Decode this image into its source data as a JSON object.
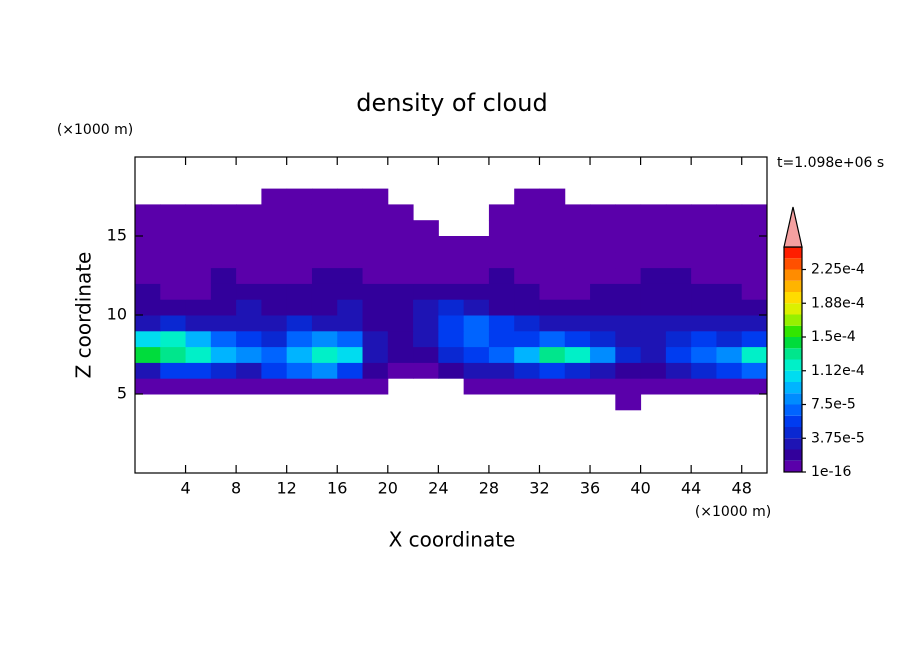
{
  "chart_data": {
    "type": "contour",
    "title": "density of cloud",
    "x_label": "X coordinate",
    "y_label": "Z coordinate",
    "x_unit": "(×1000 m)",
    "y_unit": "(×1000 m)",
    "time_label": "t=1.098e+06 s",
    "xlim": [
      0,
      50
    ],
    "ylim": [
      0,
      20
    ],
    "xticks": [
      4,
      8,
      12,
      16,
      20,
      24,
      28,
      32,
      36,
      40,
      44,
      48
    ],
    "yticks": [
      5,
      10,
      15
    ],
    "x": [
      1,
      3,
      5,
      7,
      9,
      11,
      13,
      15,
      17,
      19,
      21,
      23,
      25,
      27,
      29,
      31,
      33,
      35,
      37,
      39,
      41,
      43,
      45,
      47,
      49
    ],
    "y": [
      4.5,
      5.5,
      6.5,
      7.5,
      8.5,
      9.5,
      10.5,
      11.5,
      12.5,
      13.5,
      14.5,
      15.5,
      16.5,
      17.5
    ],
    "z": [
      [
        null,
        null,
        null,
        null,
        null,
        null,
        null,
        null,
        null,
        null,
        null,
        null,
        null,
        null,
        null,
        null,
        null,
        null,
        null,
        5e-06,
        null,
        null,
        null,
        null,
        null
      ],
      [
        5e-06,
        5e-06,
        5e-06,
        5e-06,
        5e-06,
        5e-06,
        5e-06,
        5e-06,
        5e-06,
        5e-06,
        null,
        null,
        null,
        5e-06,
        5e-06,
        5e-06,
        5e-06,
        5e-06,
        5e-06,
        5e-06,
        5e-06,
        5e-06,
        5e-06,
        5e-06,
        5e-06
      ],
      [
        3e-05,
        5e-05,
        5e-05,
        4e-05,
        3e-05,
        5e-05,
        6.5e-05,
        8e-05,
        5e-05,
        1.5e-05,
        5e-06,
        5e-06,
        1.5e-05,
        3e-05,
        3e-05,
        4e-05,
        5e-05,
        4e-05,
        3e-05,
        1.5e-05,
        1.5e-05,
        3e-05,
        4e-05,
        5e-05,
        6.5e-05
      ],
      [
        0.00014,
        0.00013,
        0.000115,
        9.5e-05,
        8e-05,
        6.5e-05,
        9.5e-05,
        0.000115,
        0.000105,
        3e-05,
        1.5e-05,
        1.5e-05,
        4e-05,
        5e-05,
        6.5e-05,
        9.5e-05,
        0.00013,
        0.000115,
        8e-05,
        4e-05,
        3e-05,
        5e-05,
        6.5e-05,
        8e-05,
        0.000115
      ],
      [
        0.000105,
        0.000115,
        9.5e-05,
        6.5e-05,
        5e-05,
        4e-05,
        6.5e-05,
        8e-05,
        6.5e-05,
        3e-05,
        1.5e-05,
        3e-05,
        5e-05,
        6.5e-05,
        5e-05,
        5e-05,
        6.5e-05,
        5e-05,
        4e-05,
        3e-05,
        3e-05,
        4e-05,
        5e-05,
        4e-05,
        5e-05
      ],
      [
        3e-05,
        4e-05,
        3e-05,
        3e-05,
        3e-05,
        3e-05,
        4e-05,
        3e-05,
        3e-05,
        1.5e-05,
        1.5e-05,
        3e-05,
        5e-05,
        6.5e-05,
        5e-05,
        4e-05,
        3e-05,
        3e-05,
        3e-05,
        3e-05,
        3e-05,
        3e-05,
        3e-05,
        3e-05,
        3e-05
      ],
      [
        1.5e-05,
        1.5e-05,
        1.5e-05,
        1.5e-05,
        3e-05,
        1.5e-05,
        1.5e-05,
        1.5e-05,
        3e-05,
        1.5e-05,
        1.5e-05,
        3e-05,
        4e-05,
        3e-05,
        1.5e-05,
        1.5e-05,
        1.5e-05,
        1.5e-05,
        1.5e-05,
        1.5e-05,
        1.5e-05,
        1.5e-05,
        1.5e-05,
        1.5e-05,
        1.5e-05
      ],
      [
        1.5e-05,
        5e-06,
        5e-06,
        1.5e-05,
        1.5e-05,
        1.5e-05,
        1.5e-05,
        1.5e-05,
        1.5e-05,
        1.5e-05,
        1.5e-05,
        1.5e-05,
        1.5e-05,
        1.5e-05,
        1.5e-05,
        1.5e-05,
        5e-06,
        5e-06,
        1.5e-05,
        1.5e-05,
        1.5e-05,
        1.5e-05,
        1.5e-05,
        1.5e-05,
        5e-06
      ],
      [
        5e-06,
        5e-06,
        5e-06,
        1.5e-05,
        5e-06,
        5e-06,
        5e-06,
        1.5e-05,
        1.5e-05,
        5e-06,
        5e-06,
        5e-06,
        5e-06,
        5e-06,
        1.5e-05,
        5e-06,
        5e-06,
        5e-06,
        5e-06,
        5e-06,
        1.5e-05,
        1.5e-05,
        5e-06,
        5e-06,
        5e-06
      ],
      [
        5e-06,
        5e-06,
        5e-06,
        5e-06,
        5e-06,
        5e-06,
        5e-06,
        5e-06,
        5e-06,
        5e-06,
        5e-06,
        5e-06,
        5e-06,
        5e-06,
        5e-06,
        5e-06,
        5e-06,
        5e-06,
        5e-06,
        5e-06,
        5e-06,
        5e-06,
        5e-06,
        5e-06,
        5e-06
      ],
      [
        5e-06,
        5e-06,
        5e-06,
        5e-06,
        5e-06,
        5e-06,
        5e-06,
        5e-06,
        5e-06,
        5e-06,
        5e-06,
        5e-06,
        5e-06,
        5e-06,
        5e-06,
        5e-06,
        5e-06,
        5e-06,
        5e-06,
        5e-06,
        5e-06,
        5e-06,
        5e-06,
        5e-06,
        5e-06
      ],
      [
        5e-06,
        5e-06,
        5e-06,
        5e-06,
        5e-06,
        5e-06,
        5e-06,
        5e-06,
        5e-06,
        5e-06,
        5e-06,
        5e-06,
        null,
        null,
        5e-06,
        5e-06,
        5e-06,
        5e-06,
        5e-06,
        5e-06,
        5e-06,
        5e-06,
        5e-06,
        5e-06,
        5e-06
      ],
      [
        5e-06,
        5e-06,
        5e-06,
        5e-06,
        5e-06,
        5e-06,
        5e-06,
        5e-06,
        5e-06,
        5e-06,
        5e-06,
        null,
        null,
        null,
        5e-06,
        5e-06,
        5e-06,
        5e-06,
        5e-06,
        5e-06,
        5e-06,
        5e-06,
        5e-06,
        5e-06,
        5e-06
      ],
      [
        null,
        null,
        null,
        null,
        null,
        5e-06,
        5e-06,
        5e-06,
        5e-06,
        5e-06,
        null,
        null,
        null,
        null,
        null,
        5e-06,
        5e-06,
        null,
        null,
        null,
        null,
        null,
        null,
        null,
        null
      ]
    ],
    "levels": [
      1e-16,
      1.25e-05,
      2.5e-05,
      3.75e-05,
      5e-05,
      6.25e-05,
      7.5e-05,
      8.75e-05,
      0.0001,
      0.0001125,
      0.000125,
      0.0001375,
      0.00015,
      0.0001625,
      0.000175,
      0.0001875,
      0.0002,
      0.0002125,
      0.000225,
      0.0002375,
      0.00025
    ],
    "colors": [
      "#5a00aa",
      "#32009b",
      "#1e14b4",
      "#0a28d2",
      "#003cf0",
      "#0064ff",
      "#008cff",
      "#00b4ff",
      "#00dcf0",
      "#00f0c8",
      "#00e68c",
      "#00dc3c",
      "#32e600",
      "#96f000",
      "#dcf000",
      "#ffdc00",
      "#ffb400",
      "#ff8c00",
      "#ff5000",
      "#ff1e00"
    ],
    "extend_color": "#f4a0a0",
    "colorbar_ticks": [
      {
        "value": 1e-16,
        "label": "1e-16"
      },
      {
        "value": 3.75e-05,
        "label": "3.75e-5"
      },
      {
        "value": 7.5e-05,
        "label": "7.5e-5"
      },
      {
        "value": 0.0001125,
        "label": "1.12e-4"
      },
      {
        "value": 0.00015,
        "label": "1.5e-4"
      },
      {
        "value": 0.0001875,
        "label": "1.88e-4"
      },
      {
        "value": 0.000225,
        "label": "2.25e-4"
      }
    ]
  }
}
